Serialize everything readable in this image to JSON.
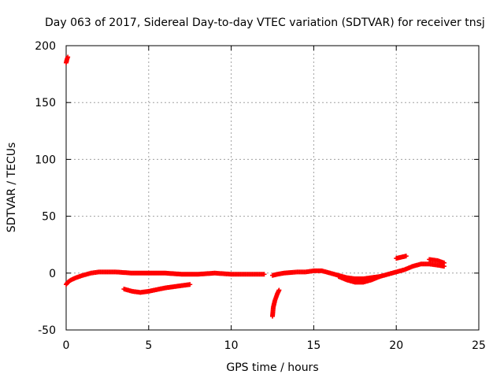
{
  "chart_data": {
    "type": "scatter",
    "title": "Day 063 of 2017, Sidereal Day-to-day VTEC variation (SDTVAR) for receiver tnsj",
    "xlabel": "GPS time / hours",
    "ylabel": "SDTVAR / TECUs",
    "xlim": [
      0,
      25
    ],
    "ylim": [
      -50,
      200
    ],
    "xticks": [
      "0",
      "5",
      "10",
      "15",
      "20",
      "25"
    ],
    "yticks": [
      "-50",
      "0",
      "50",
      "100",
      "150",
      "200"
    ],
    "grid": true,
    "marker": "plus",
    "color": "#ff0000",
    "series": [
      {
        "segments": [
          [
            [
              0.0,
              185
            ],
            [
              0.05,
              188
            ],
            [
              0.1,
              190
            ]
          ],
          [
            [
              0.0,
              -10
            ],
            [
              0.1,
              -8
            ],
            [
              0.3,
              -6
            ],
            [
              0.6,
              -4
            ],
            [
              1.0,
              -2
            ],
            [
              1.5,
              0
            ],
            [
              2.0,
              1
            ],
            [
              3.0,
              1
            ],
            [
              4.0,
              0
            ],
            [
              5.0,
              0
            ],
            [
              6.0,
              0
            ],
            [
              7.0,
              -1
            ],
            [
              8.0,
              -1
            ],
            [
              9.0,
              0
            ],
            [
              10.0,
              -1
            ],
            [
              11.0,
              -1
            ],
            [
              12.0,
              -1
            ]
          ],
          [
            [
              3.5,
              -14
            ],
            [
              4.0,
              -16
            ],
            [
              4.5,
              -17
            ],
            [
              5.0,
              -16
            ],
            [
              6.0,
              -13
            ],
            [
              7.0,
              -11
            ],
            [
              7.5,
              -10
            ]
          ],
          [
            [
              12.5,
              -38
            ],
            [
              12.55,
              -30
            ],
            [
              12.65,
              -24
            ],
            [
              12.8,
              -18
            ],
            [
              12.9,
              -15
            ]
          ],
          [
            [
              12.5,
              -2
            ],
            [
              12.8,
              -1
            ],
            [
              13.2,
              0
            ],
            [
              14.0,
              1
            ],
            [
              14.5,
              1
            ],
            [
              15.0,
              2
            ],
            [
              15.5,
              2
            ],
            [
              16.0,
              0
            ],
            [
              16.5,
              -2
            ],
            [
              17.0,
              -4
            ],
            [
              17.5,
              -5
            ],
            [
              18.0,
              -5
            ],
            [
              18.5,
              -4
            ],
            [
              19.0,
              -3
            ],
            [
              19.5,
              -1
            ],
            [
              20.0,
              1
            ],
            [
              20.5,
              3
            ],
            [
              21.0,
              6
            ],
            [
              21.5,
              8
            ],
            [
              22.0,
              8
            ],
            [
              22.5,
              7
            ],
            [
              22.9,
              6
            ]
          ],
          [
            [
              16.5,
              -3
            ],
            [
              17.0,
              -6
            ],
            [
              17.5,
              -8
            ],
            [
              18.0,
              -8
            ],
            [
              18.5,
              -6
            ],
            [
              19.0,
              -3
            ]
          ],
          [
            [
              20.0,
              13
            ],
            [
              20.3,
              14
            ],
            [
              20.6,
              15
            ]
          ],
          [
            [
              22.0,
              12
            ],
            [
              22.5,
              11
            ],
            [
              22.9,
              9
            ]
          ]
        ]
      }
    ]
  }
}
